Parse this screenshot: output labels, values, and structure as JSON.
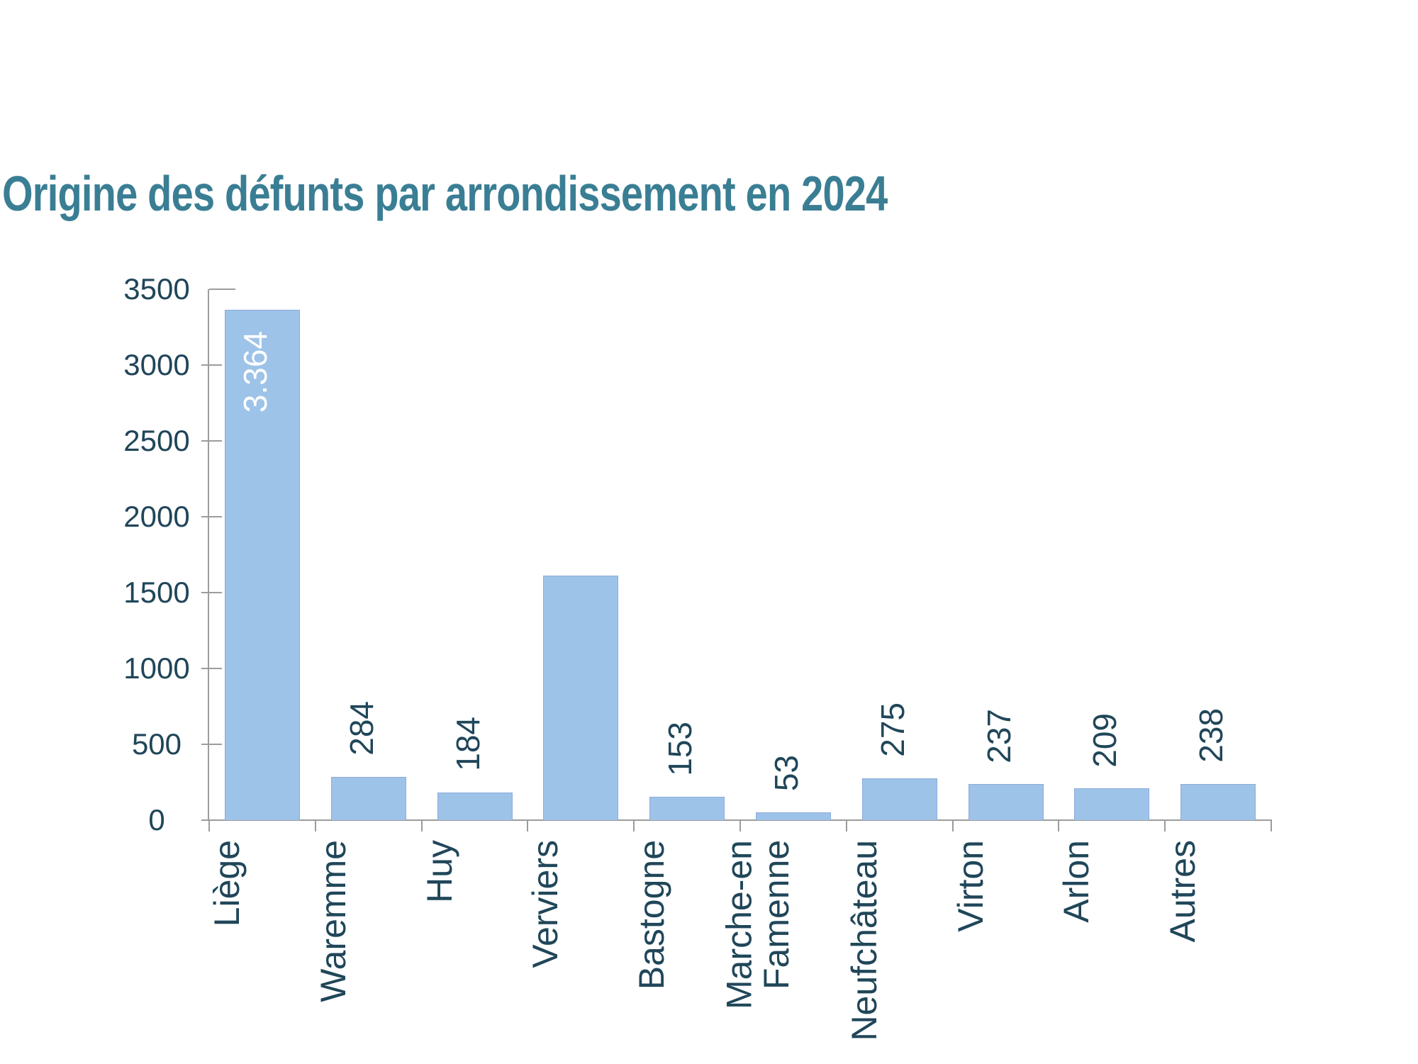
{
  "page": {
    "background": "#FFFFFF"
  },
  "chart_data": {
    "type": "bar",
    "title": "Origine des défunts par arrondissement en 2024",
    "categories": [
      "Liège",
      "Waremme",
      "Huy",
      "Verviers",
      "Bastogne",
      "Marche-en\nFamenne",
      "Neufchâteau",
      "Virton",
      "Arlon",
      "Autres"
    ],
    "values": [
      3364,
      284,
      184,
      1610,
      153,
      53,
      275,
      237,
      209,
      238
    ],
    "bar_labels": [
      "3.364",
      "284",
      "184",
      "",
      "153",
      "53",
      "275",
      "237",
      "209",
      "238"
    ],
    "bar_label_positions": [
      "inside-top",
      "above",
      "above",
      "none",
      "above",
      "above",
      "above",
      "above",
      "above",
      "above"
    ],
    "xlabel": "",
    "ylabel": "",
    "ylim": [
      0,
      3500
    ],
    "yticks": [
      0,
      500,
      1000,
      1500,
      2000,
      2500,
      3000,
      3500
    ],
    "ytick_labels": [
      "0",
      "500",
      "1000",
      "1500",
      "2000",
      "2500",
      "3000",
      "3500"
    ],
    "grid": "off",
    "legend": "none",
    "colors": {
      "bar_fill": "#9DC3E8",
      "bar_border": "#8FABDC",
      "title": "#3A7E94",
      "text": "#204659",
      "inside_label": "#FFFFFF",
      "axis": "#9C9C9C"
    }
  }
}
